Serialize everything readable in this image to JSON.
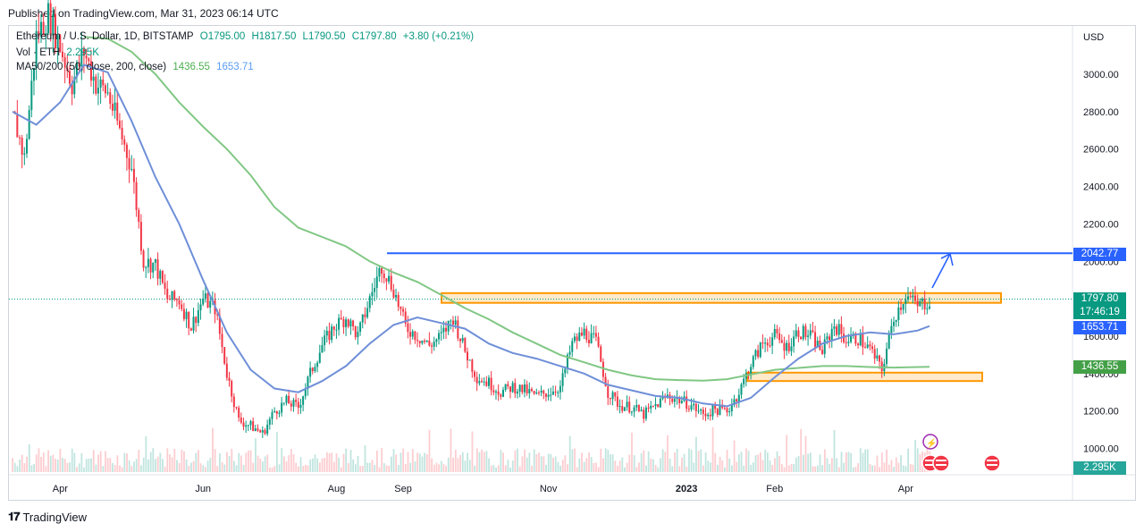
{
  "header": {
    "published": "Published on TradingView.com, Mar 31, 2023 06:14 UTC"
  },
  "legend": {
    "symbol": "Ethereum / U.S. Dollar, 1D, BITSTAMP",
    "open": "O1795.00",
    "high": "H1817.50",
    "low": "L1790.50",
    "close": "C1797.80",
    "change": "+3.80 (+0.21%)",
    "volume_label": "Vol · ETH",
    "volume_value": "2.295K",
    "ma_label": "MA50/200 (50, close, 200, close)",
    "ma_value_1": "1436.55",
    "ma_value_2": "1653.71"
  },
  "price_tags": {
    "target": "2042.77",
    "last_price": "1797.80",
    "countdown": "17:46:19",
    "ma50": "1653.71",
    "ma200": "1436.55",
    "volume": "2.295K"
  },
  "footer": {
    "brand": "TradingView"
  },
  "colors": {
    "up": "#089981",
    "down": "#f23645",
    "ma50": "#5b9cf6",
    "ma200": "#81c784",
    "resistance": "#ff9800",
    "target": "#2962ff"
  },
  "chart_data": {
    "type": "candlestick",
    "currency_label": "USD",
    "y_ticks": [
      "1000.00",
      "1200.00",
      "1400.00",
      "1600.00",
      "1800.00",
      "2000.00",
      "2200.00",
      "2400.00",
      "2600.00",
      "2800.00",
      "3000.00"
    ],
    "x_ticks": [
      "Apr",
      "Jun",
      "Aug",
      "Sep",
      "Nov",
      "2023",
      "Feb",
      "Apr"
    ],
    "ylim": [
      900,
      3200
    ],
    "close_path": [
      [
        0,
        2800
      ],
      [
        5,
        2550
      ],
      [
        10,
        3200
      ],
      [
        15,
        3320
      ],
      [
        20,
        3150
      ],
      [
        25,
        2950
      ],
      [
        30,
        3120
      ],
      [
        35,
        2950
      ],
      [
        40,
        2900
      ],
      [
        45,
        2700
      ],
      [
        50,
        2500
      ],
      [
        55,
        2000
      ],
      [
        60,
        1980
      ],
      [
        65,
        1800
      ],
      [
        70,
        1790
      ],
      [
        75,
        1650
      ],
      [
        80,
        1800
      ],
      [
        85,
        1750
      ],
      [
        90,
        1400
      ],
      [
        95,
        1150
      ],
      [
        100,
        1120
      ],
      [
        105,
        1080
      ],
      [
        110,
        1200
      ],
      [
        115,
        1250
      ],
      [
        120,
        1220
      ],
      [
        125,
        1400
      ],
      [
        130,
        1550
      ],
      [
        135,
        1650
      ],
      [
        140,
        1700
      ],
      [
        145,
        1600
      ],
      [
        150,
        1800
      ],
      [
        155,
        1980
      ],
      [
        160,
        1850
      ],
      [
        165,
        1650
      ],
      [
        170,
        1600
      ],
      [
        175,
        1550
      ],
      [
        180,
        1600
      ],
      [
        185,
        1700
      ],
      [
        190,
        1520
      ],
      [
        195,
        1380
      ],
      [
        200,
        1350
      ],
      [
        205,
        1300
      ],
      [
        210,
        1330
      ],
      [
        215,
        1310
      ],
      [
        220,
        1280
      ],
      [
        225,
        1300
      ],
      [
        230,
        1330
      ],
      [
        235,
        1560
      ],
      [
        240,
        1620
      ],
      [
        245,
        1570
      ],
      [
        250,
        1300
      ],
      [
        255,
        1230
      ],
      [
        260,
        1220
      ],
      [
        265,
        1180
      ],
      [
        270,
        1230
      ],
      [
        275,
        1280
      ],
      [
        280,
        1260
      ],
      [
        285,
        1230
      ],
      [
        290,
        1180
      ],
      [
        295,
        1210
      ],
      [
        300,
        1200
      ],
      [
        305,
        1300
      ],
      [
        310,
        1450
      ],
      [
        315,
        1560
      ],
      [
        320,
        1600
      ],
      [
        325,
        1540
      ],
      [
        330,
        1630
      ],
      [
        335,
        1600
      ],
      [
        340,
        1520
      ],
      [
        345,
        1660
      ],
      [
        350,
        1580
      ],
      [
        355,
        1590
      ],
      [
        360,
        1530
      ],
      [
        365,
        1420
      ],
      [
        370,
        1700
      ],
      [
        375,
        1820
      ],
      [
        380,
        1760
      ],
      [
        385,
        1790
      ]
    ],
    "ma50_path": [
      [
        0,
        2800
      ],
      [
        10,
        2730
      ],
      [
        20,
        2850
      ],
      [
        30,
        3050
      ],
      [
        40,
        3010
      ],
      [
        50,
        2750
      ],
      [
        60,
        2450
      ],
      [
        70,
        2200
      ],
      [
        80,
        1900
      ],
      [
        90,
        1620
      ],
      [
        100,
        1420
      ],
      [
        110,
        1320
      ],
      [
        120,
        1300
      ],
      [
        130,
        1360
      ],
      [
        140,
        1440
      ],
      [
        150,
        1560
      ],
      [
        160,
        1660
      ],
      [
        170,
        1700
      ],
      [
        180,
        1670
      ],
      [
        190,
        1640
      ],
      [
        200,
        1560
      ],
      [
        210,
        1510
      ],
      [
        220,
        1480
      ],
      [
        230,
        1440
      ],
      [
        240,
        1400
      ],
      [
        250,
        1340
      ],
      [
        260,
        1310
      ],
      [
        270,
        1280
      ],
      [
        280,
        1270
      ],
      [
        290,
        1240
      ],
      [
        300,
        1225
      ],
      [
        310,
        1270
      ],
      [
        320,
        1380
      ],
      [
        330,
        1480
      ],
      [
        340,
        1560
      ],
      [
        350,
        1600
      ],
      [
        360,
        1620
      ],
      [
        370,
        1610
      ],
      [
        380,
        1630
      ],
      [
        385,
        1653.71
      ]
    ],
    "ma200_path": [
      [
        30,
        3200
      ],
      [
        40,
        3190
      ],
      [
        50,
        3120
      ],
      [
        60,
        3000
      ],
      [
        70,
        2850
      ],
      [
        80,
        2720
      ],
      [
        90,
        2600
      ],
      [
        100,
        2460
      ],
      [
        110,
        2290
      ],
      [
        120,
        2180
      ],
      [
        130,
        2130
      ],
      [
        140,
        2080
      ],
      [
        150,
        2000
      ],
      [
        160,
        1940
      ],
      [
        170,
        1890
      ],
      [
        180,
        1820
      ],
      [
        190,
        1750
      ],
      [
        200,
        1690
      ],
      [
        210,
        1620
      ],
      [
        220,
        1560
      ],
      [
        230,
        1500
      ],
      [
        240,
        1460
      ],
      [
        250,
        1420
      ],
      [
        260,
        1390
      ],
      [
        270,
        1370
      ],
      [
        280,
        1365
      ],
      [
        290,
        1362
      ],
      [
        300,
        1370
      ],
      [
        310,
        1395
      ],
      [
        320,
        1420
      ],
      [
        330,
        1430
      ],
      [
        340,
        1440
      ],
      [
        350,
        1440
      ],
      [
        360,
        1435
      ],
      [
        370,
        1432
      ],
      [
        385,
        1436.55
      ]
    ],
    "annotations": {
      "resistance_zone": [
        1778,
        1830
      ],
      "support_zone": [
        1360,
        1405
      ],
      "target_line": 2042.77,
      "last_price": 1797.8
    }
  }
}
